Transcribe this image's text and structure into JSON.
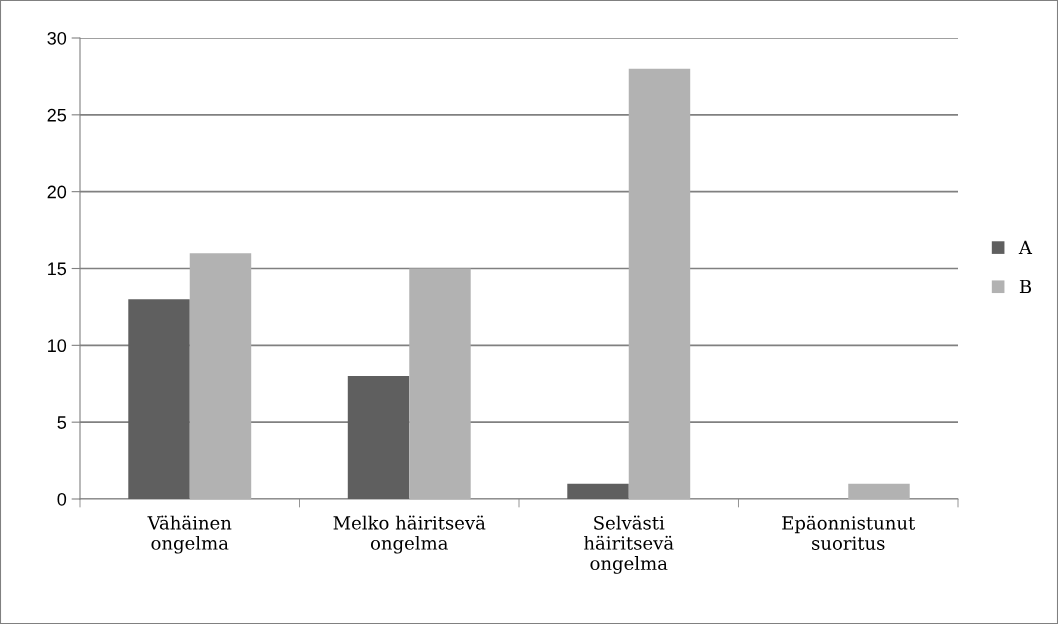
{
  "chart_data": {
    "type": "bar",
    "categories": [
      "Vähäinen\nongelma",
      "Melko häiritsevä\nongelma",
      "Selvästi\nhäiritsevä\nongelma",
      "Epäonnistunut\nsuoritus"
    ],
    "series": [
      {
        "name": "A",
        "color": "#5f5f5f",
        "values": [
          13,
          8,
          1,
          0
        ]
      },
      {
        "name": "B",
        "color": "#b2b2b2",
        "values": [
          16,
          15,
          28,
          1
        ]
      }
    ],
    "ylim": [
      0,
      30
    ],
    "yticks": [
      0,
      5,
      10,
      15,
      20,
      25,
      30
    ],
    "grid": "y",
    "legend": "right"
  }
}
